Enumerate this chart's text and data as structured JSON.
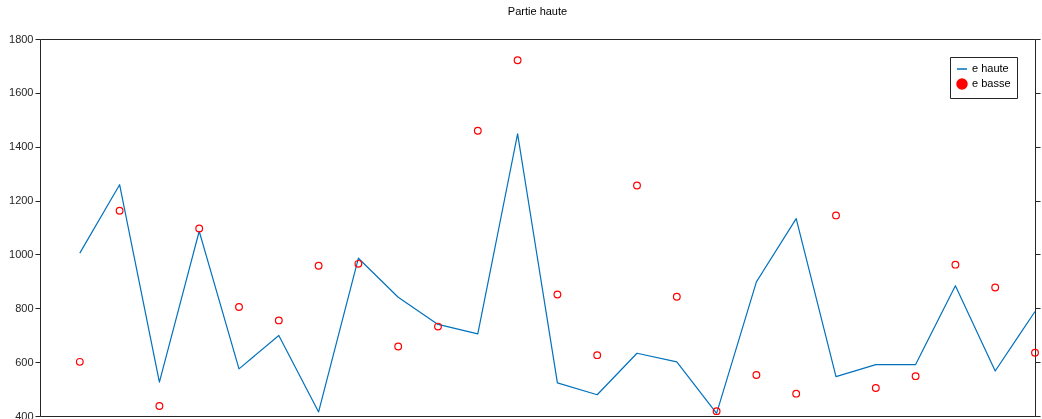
{
  "chart_data": {
    "type": "line",
    "title": "Partie haute",
    "categories": [
      null,
      null,
      null,
      null,
      null,
      null,
      null,
      null,
      null,
      null,
      null,
      null,
      null,
      null,
      null,
      null,
      null,
      null,
      null,
      null,
      null,
      null,
      null,
      null,
      null
    ],
    "ylim": [
      400,
      1800
    ],
    "yticks": [
      400,
      600,
      800,
      1000,
      1200,
      1400,
      1600,
      1800
    ],
    "tick_labels": "y",
    "grid": false,
    "legend": "top right",
    "series": [
      {
        "name": "e haute",
        "color": "#0072bd",
        "line_style": "solid",
        "values": [
          1005,
          1259,
          526,
          1086,
          575,
          699,
          415,
          986,
          841,
          740,
          705,
          1448,
          523,
          479,
          633,
          601,
          410,
          898,
          1133,
          546,
          591,
          591,
          884,
          567,
          788
        ]
      },
      {
        "name": "e basse",
        "type": "scatter",
        "color": "#ff0000",
        "marker": "circle",
        "values": [
          601,
          1162,
          437,
          1096,
          805,
          755,
          958,
          965,
          658,
          732,
          1459,
          1721,
          851,
          626,
          1256,
          843,
          418,
          552,
          483,
          1145,
          504,
          548,
          962,
          877,
          635
        ]
      }
    ]
  }
}
